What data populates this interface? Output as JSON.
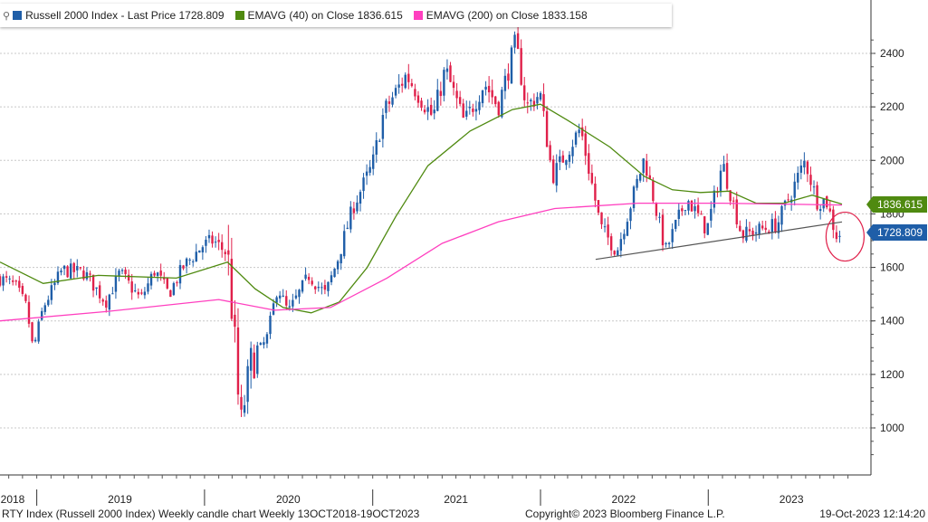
{
  "legend": {
    "lock_icon": "⚲",
    "items": [
      {
        "label": "Russell 2000 Index - Last Price 1728.809",
        "color": "#1f5ea8"
      },
      {
        "label": "EMAVG (40)   on Close 1836.615",
        "color": "#4f8a10"
      },
      {
        "label": "EMAVG (200)   on Close 1833.158",
        "color": "#ff3fbf"
      }
    ]
  },
  "price_tags": [
    {
      "text": "1836.615",
      "value": 1836.615,
      "color": "#4f8a10"
    },
    {
      "text": "1728.809",
      "value": 1728.809,
      "color": "#1f5ea8"
    }
  ],
  "footer": {
    "left": "RTY Index (Russell 2000 Index) Weekly candle chart  Weekly 13OCT2018-19OCT2023",
    "center": "Copyright© 2023 Bloomberg Finance L.P.",
    "right": "19-Oct-2023 12:14:20"
  },
  "chart_data": {
    "type": "candlestick",
    "title": "",
    "xlabel": "",
    "ylabel": "",
    "x_tick_labels": [
      "2018",
      "2019",
      "2020",
      "2021",
      "2022",
      "2023"
    ],
    "y_ticks": [
      1000,
      1200,
      1400,
      1600,
      1800,
      2000,
      2200,
      2400
    ],
    "ylim": [
      860,
      2490
    ],
    "xlim": [
      "2018-10-13",
      "2023-10-19"
    ],
    "grid": true,
    "y_axis_side": "right",
    "up_color": "#1f5ea8",
    "down_color": "#e0204a",
    "close_series": [
      [
        "2018-10-13",
        1560
      ],
      [
        "2018-11-15",
        1530
      ],
      [
        "2018-12-10",
        1450
      ],
      [
        "2018-12-24",
        1290
      ],
      [
        "2019-01-15",
        1450
      ],
      [
        "2019-02-25",
        1590
      ],
      [
        "2019-04-15",
        1580
      ],
      [
        "2019-05-31",
        1470
      ],
      [
        "2019-07-01",
        1580
      ],
      [
        "2019-08-15",
        1480
      ],
      [
        "2019-09-15",
        1590
      ],
      [
        "2019-10-15",
        1500
      ],
      [
        "2019-11-15",
        1600
      ],
      [
        "2019-12-27",
        1680
      ],
      [
        "2020-01-20",
        1700
      ],
      [
        "2020-02-20",
        1650
      ],
      [
        "2020-02-28",
        1480
      ],
      [
        "2020-03-10",
        1250
      ],
      [
        "2020-03-18",
        990
      ],
      [
        "2020-04-10",
        1240
      ],
      [
        "2020-05-15",
        1330
      ],
      [
        "2020-06-08",
        1530
      ],
      [
        "2020-07-01",
        1430
      ],
      [
        "2020-08-15",
        1570
      ],
      [
        "2020-09-20",
        1500
      ],
      [
        "2020-10-15",
        1620
      ],
      [
        "2020-11-20",
        1830
      ],
      [
        "2020-12-31",
        1980
      ],
      [
        "2021-01-25",
        2180
      ],
      [
        "2021-03-15",
        2320
      ],
      [
        "2021-05-12",
        2160
      ],
      [
        "2021-06-08",
        2340
      ],
      [
        "2021-07-19",
        2140
      ],
      [
        "2021-09-01",
        2290
      ],
      [
        "2021-10-01",
        2200
      ],
      [
        "2021-11-08",
        2440
      ],
      [
        "2021-12-01",
        2200
      ],
      [
        "2021-12-31",
        2250
      ],
      [
        "2022-01-27",
        1940
      ],
      [
        "2022-03-29",
        2120
      ],
      [
        "2022-05-12",
        1750
      ],
      [
        "2022-06-16",
        1660
      ],
      [
        "2022-08-15",
        2010
      ],
      [
        "2022-09-30",
        1660
      ],
      [
        "2022-11-15",
        1860
      ],
      [
        "2022-12-29",
        1740
      ],
      [
        "2023-02-01",
        1990
      ],
      [
        "2023-03-15",
        1720
      ],
      [
        "2023-05-31",
        1760
      ],
      [
        "2023-07-31",
        2000
      ],
      [
        "2023-08-25",
        1850
      ],
      [
        "2023-09-15",
        1850
      ],
      [
        "2023-10-06",
        1720
      ],
      [
        "2023-10-19",
        1729
      ]
    ],
    "series": [
      {
        "name": "EMAVG (40)",
        "color": "#4f8a10",
        "points": [
          [
            "2018-10-13",
            1620
          ],
          [
            "2019-01-15",
            1540
          ],
          [
            "2019-05-15",
            1570
          ],
          [
            "2019-11-01",
            1560
          ],
          [
            "2020-02-20",
            1620
          ],
          [
            "2020-04-20",
            1520
          ],
          [
            "2020-06-20",
            1450
          ],
          [
            "2020-08-20",
            1430
          ],
          [
            "2020-10-20",
            1470
          ],
          [
            "2020-12-20",
            1600
          ],
          [
            "2021-02-20",
            1790
          ],
          [
            "2021-05-01",
            1980
          ],
          [
            "2021-08-01",
            2110
          ],
          [
            "2021-11-01",
            2190
          ],
          [
            "2022-01-01",
            2210
          ],
          [
            "2022-03-01",
            2150
          ],
          [
            "2022-06-01",
            2050
          ],
          [
            "2022-08-15",
            1940
          ],
          [
            "2022-10-15",
            1890
          ],
          [
            "2022-12-15",
            1880
          ],
          [
            "2023-02-15",
            1885
          ],
          [
            "2023-04-15",
            1840
          ],
          [
            "2023-06-15",
            1840
          ],
          [
            "2023-08-15",
            1870
          ],
          [
            "2023-10-19",
            1836.615
          ]
        ]
      },
      {
        "name": "EMAVG (200)",
        "color": "#ff3fbf",
        "points": [
          [
            "2018-10-13",
            1400
          ],
          [
            "2019-06-01",
            1435
          ],
          [
            "2020-02-01",
            1480
          ],
          [
            "2020-06-01",
            1440
          ],
          [
            "2020-10-01",
            1450
          ],
          [
            "2021-02-01",
            1560
          ],
          [
            "2021-06-01",
            1690
          ],
          [
            "2021-10-01",
            1770
          ],
          [
            "2022-02-01",
            1820
          ],
          [
            "2022-08-01",
            1840
          ],
          [
            "2023-02-01",
            1840
          ],
          [
            "2023-10-19",
            1833.158
          ]
        ]
      }
    ],
    "trendline": {
      "color": "#555555",
      "points": [
        [
          "2022-05-01",
          1630
        ],
        [
          "2023-10-19",
          1770
        ]
      ]
    },
    "highlight_circle": {
      "center": [
        "2023-10-06",
        1715
      ],
      "color": "#e0204a"
    }
  }
}
